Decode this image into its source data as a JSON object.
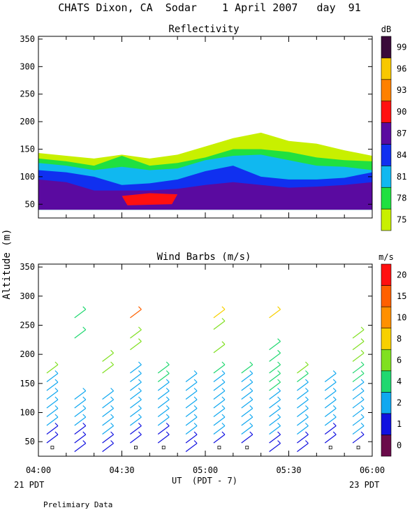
{
  "header": {
    "title": "CHATS Dixon, CA  Sodar    1 April 2007   day  91"
  },
  "footer": {
    "start_label": "21 PDT",
    "end_label": "23 PDT",
    "xlabel": "UT  (PDT - 7)",
    "note": "Prelimiary Data"
  },
  "shared": {
    "ylabel": "Altitude (m)",
    "x_ticks": [
      "04:00",
      "04:30",
      "05:00",
      "05:30",
      "06:00"
    ],
    "y_ticks": [
      "50",
      "100",
      "150",
      "200",
      "250",
      "300",
      "350"
    ]
  },
  "colors": {
    "cbar1": [
      "#c8f000",
      "#20e040",
      "#10b8f0",
      "#1030f0",
      "#5a0aa0",
      "#ff1010",
      "#ff8000",
      "#f8c800",
      "#3a0a3a"
    ],
    "cbar2": [
      "#6a0a4a",
      "#1010e0",
      "#10a8f0",
      "#20d870",
      "#80e020",
      "#f8d000",
      "#ff9000",
      "#ff6000",
      "#ff1010"
    ]
  },
  "chart_data": [
    {
      "type": "heatmap",
      "title": "Reflectivity",
      "units": "dB",
      "x_range": [
        "04:00",
        "06:00"
      ],
      "ylim": [
        25,
        355
      ],
      "colorbar_labels": [
        "75",
        "78",
        "81",
        "84",
        "87",
        "90",
        "93",
        "96",
        "99"
      ],
      "colorbar_values": [
        75,
        78,
        81,
        84,
        87,
        90,
        93,
        96,
        99
      ],
      "layers": [
        {
          "level": 75,
          "x_min": [
            0,
            10,
            20,
            30,
            40,
            50,
            60,
            70,
            80,
            90,
            100,
            110,
            120
          ],
          "top": [
            143,
            138,
            133,
            140,
            133,
            140,
            155,
            170,
            180,
            165,
            160,
            148,
            138
          ],
          "bottom": [
            40,
            40,
            40,
            40,
            40,
            40,
            40,
            40,
            40,
            40,
            40,
            40,
            40
          ]
        },
        {
          "level": 78,
          "top": [
            133,
            128,
            120,
            138,
            120,
            125,
            135,
            150,
            150,
            145,
            135,
            130,
            128
          ]
        },
        {
          "level": 81,
          "top": [
            125,
            120,
            112,
            118,
            112,
            115,
            130,
            138,
            140,
            130,
            120,
            118,
            112
          ]
        },
        {
          "level": 84,
          "top": [
            112,
            108,
            100,
            85,
            88,
            95,
            110,
            120,
            100,
            95,
            95,
            98,
            108
          ]
        },
        {
          "level": 87,
          "top": [
            95,
            90,
            75,
            75,
            75,
            78,
            85,
            90,
            85,
            80,
            82,
            85,
            90
          ]
        }
      ],
      "max_patch": {
        "level": 90,
        "x_min": [
          30,
          50
        ],
        "alt_range": [
          45,
          70
        ]
      }
    },
    {
      "type": "scatter",
      "title": "Wind Barbs (m/s)",
      "units": "m/s",
      "x_range": [
        "04:00",
        "06:00"
      ],
      "ylim": [
        25,
        355
      ],
      "colorbar_labels": [
        "0",
        "1",
        "2",
        "4",
        "6",
        "8",
        "10",
        "15",
        "20"
      ],
      "colorbar_values": [
        0,
        1,
        2,
        4,
        6,
        8,
        10,
        15,
        20
      ],
      "profiles": [
        {
          "x_min": 5,
          "points": [
            [
              40,
              0
            ],
            [
              55,
              1
            ],
            [
              70,
              1.5
            ],
            [
              85,
              2
            ],
            [
              100,
              2
            ],
            [
              115,
              2
            ],
            [
              130,
              3
            ],
            [
              145,
              3
            ],
            [
              160,
              3
            ],
            [
              175,
              7
            ]
          ]
        },
        {
          "x_min": 15,
          "points": [
            [
              40,
              1
            ],
            [
              55,
              1.5
            ],
            [
              70,
              1.5
            ],
            [
              85,
              2
            ],
            [
              100,
              2
            ],
            [
              115,
              2
            ],
            [
              130,
              3
            ],
            [
              235,
              4
            ],
            [
              270,
              4
            ]
          ]
        },
        {
          "x_min": 25,
          "points": [
            [
              40,
              1
            ],
            [
              55,
              1
            ],
            [
              70,
              2
            ],
            [
              85,
              2
            ],
            [
              100,
              2
            ],
            [
              115,
              2
            ],
            [
              130,
              3
            ],
            [
              175,
              6
            ],
            [
              195,
              6
            ]
          ]
        },
        {
          "x_min": 35,
          "points": [
            [
              40,
              0
            ],
            [
              55,
              1
            ],
            [
              70,
              1
            ],
            [
              85,
              2
            ],
            [
              100,
              2
            ],
            [
              115,
              2
            ],
            [
              130,
              3
            ],
            [
              145,
              3
            ],
            [
              160,
              3
            ],
            [
              175,
              3
            ],
            [
              215,
              6
            ],
            [
              235,
              6
            ],
            [
              270,
              18
            ]
          ]
        },
        {
          "x_min": 45,
          "points": [
            [
              40,
              0
            ],
            [
              55,
              1
            ],
            [
              70,
              1.5
            ],
            [
              85,
              2
            ],
            [
              100,
              2
            ],
            [
              115,
              2
            ],
            [
              130,
              3
            ],
            [
              145,
              3
            ],
            [
              160,
              4
            ],
            [
              175,
              4
            ]
          ]
        },
        {
          "x_min": 55,
          "points": [
            [
              40,
              1
            ],
            [
              55,
              1
            ],
            [
              70,
              2
            ],
            [
              85,
              2
            ],
            [
              100,
              2
            ],
            [
              115,
              2
            ],
            [
              130,
              2
            ],
            [
              145,
              3
            ],
            [
              160,
              3
            ]
          ]
        },
        {
          "x_min": 65,
          "points": [
            [
              40,
              0
            ],
            [
              55,
              1
            ],
            [
              70,
              2
            ],
            [
              85,
              2
            ],
            [
              100,
              2
            ],
            [
              115,
              2
            ],
            [
              130,
              3
            ],
            [
              145,
              3
            ],
            [
              160,
              3
            ],
            [
              175,
              4
            ],
            [
              210,
              6
            ],
            [
              250,
              7
            ],
            [
              270,
              8
            ]
          ]
        },
        {
          "x_min": 75,
          "points": [
            [
              40,
              0
            ],
            [
              55,
              1
            ],
            [
              70,
              2
            ],
            [
              85,
              2
            ],
            [
              100,
              2
            ],
            [
              115,
              2
            ],
            [
              130,
              3
            ],
            [
              145,
              3
            ],
            [
              160,
              3
            ],
            [
              175,
              4
            ]
          ]
        },
        {
          "x_min": 85,
          "points": [
            [
              40,
              1
            ],
            [
              55,
              1
            ],
            [
              70,
              2
            ],
            [
              85,
              2
            ],
            [
              100,
              2
            ],
            [
              115,
              3
            ],
            [
              130,
              3
            ],
            [
              145,
              4
            ],
            [
              160,
              4
            ],
            [
              175,
              4
            ],
            [
              195,
              4
            ],
            [
              215,
              4
            ],
            [
              270,
              9
            ]
          ]
        },
        {
          "x_min": 95,
          "points": [
            [
              40,
              1
            ],
            [
              55,
              1
            ],
            [
              70,
              2
            ],
            [
              85,
              2
            ],
            [
              100,
              2
            ],
            [
              115,
              3
            ],
            [
              130,
              3
            ],
            [
              145,
              3
            ],
            [
              160,
              4
            ],
            [
              175,
              7
            ]
          ]
        },
        {
          "x_min": 105,
          "points": [
            [
              40,
              0
            ],
            [
              55,
              1
            ],
            [
              70,
              1
            ],
            [
              85,
              2
            ],
            [
              100,
              2
            ],
            [
              115,
              2
            ],
            [
              130,
              3
            ],
            [
              145,
              3
            ],
            [
              160,
              3
            ]
          ]
        },
        {
          "x_min": 115,
          "points": [
            [
              40,
              0
            ],
            [
              55,
              1
            ],
            [
              70,
              2
            ],
            [
              85,
              2
            ],
            [
              100,
              2
            ],
            [
              115,
              3
            ],
            [
              130,
              3
            ],
            [
              145,
              3
            ],
            [
              160,
              4
            ],
            [
              175,
              5
            ],
            [
              195,
              6
            ],
            [
              215,
              6
            ],
            [
              235,
              6
            ]
          ]
        }
      ]
    }
  ]
}
